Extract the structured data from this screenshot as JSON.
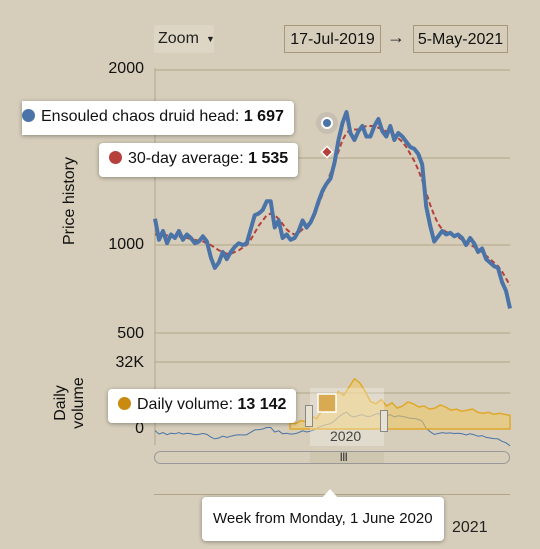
{
  "toolbar": {
    "zoom_label": "Zoom",
    "range_start": "17-Jul-2019",
    "range_arrow": "→",
    "range_end": "5-May-2021"
  },
  "price_axis": {
    "title": "Price history",
    "ticks": [
      "2000",
      "1000",
      "500"
    ]
  },
  "volume_axis": {
    "title_line1": "Daily",
    "title_line2": "volume",
    "ticks": [
      "32K",
      "0"
    ]
  },
  "navigator": {
    "year_label": "2020",
    "handle_grip": "|||"
  },
  "tooltips": {
    "item_label": "Ensouled chaos druid head:",
    "item_value": "1 697",
    "avg_label": "30-day average:",
    "avg_value": "1 535",
    "volume_label": "Daily volume:",
    "volume_value": "13 142",
    "week_label": "Week from Monday, 1 June 2020"
  },
  "x_axis": {
    "partial_label": "2021"
  },
  "colors": {
    "price_line": "#4a73a8",
    "average_line": "#b5403c",
    "volume_marker": "#c98a10",
    "volume_area": "#f2c860",
    "background": "#d6ceba",
    "grid": "#b3a688"
  },
  "chart_data": [
    {
      "type": "line",
      "title": "",
      "ylabel": "Price history",
      "ylim": [
        500,
        2000
      ],
      "x_range": [
        "2019-07-17",
        "2021-05-05"
      ],
      "series": [
        {
          "name": "Ensouled chaos druid head",
          "values": [
            1150,
            1030,
            1080,
            1010,
            1060,
            1040,
            1080,
            1030,
            1060,
            1040,
            1010,
            1020,
            1050,
            1020,
            930,
            870,
            900,
            960,
            920,
            960,
            990,
            1010,
            1000,
            1010,
            1090,
            1170,
            1180,
            1200,
            1250,
            1250,
            1100,
            1140,
            1040,
            1060,
            1030,
            1040,
            1080,
            1140,
            1100,
            1130,
            1180,
            1250,
            1310,
            1350,
            1380,
            1470,
            1600,
            1697,
            1760,
            1640,
            1600,
            1650,
            1680,
            1620,
            1620,
            1680,
            1720,
            1650,
            1620,
            1680,
            1600,
            1640,
            1620,
            1590,
            1560,
            1550,
            1520,
            1460,
            1220,
            1110,
            1020,
            1050,
            1080,
            1060,
            1070,
            1050,
            1060,
            1040,
            1000,
            1040,
            1010,
            960,
            980,
            920,
            900,
            880,
            870,
            790,
            740,
            640
          ]
        },
        {
          "name": "30-day average",
          "values": [
            1060,
            1060,
            1060,
            1055,
            1050,
            1050,
            1048,
            1045,
            1040,
            1035,
            1030,
            1025,
            1020,
            1010,
            1000,
            985,
            970,
            960,
            950,
            950,
            960,
            970,
            985,
            1000,
            1030,
            1070,
            1110,
            1140,
            1170,
            1180,
            1170,
            1150,
            1120,
            1090,
            1070,
            1060,
            1070,
            1090,
            1110,
            1140,
            1180,
            1230,
            1290,
            1350,
            1410,
            1470,
            1535,
            1600,
            1640,
            1660,
            1660,
            1660,
            1670,
            1680,
            1680,
            1680,
            1670,
            1660,
            1650,
            1640,
            1630,
            1610,
            1590,
            1560,
            1520,
            1480,
            1430,
            1370,
            1300,
            1230,
            1170,
            1120,
            1090,
            1075,
            1065,
            1055,
            1045,
            1030,
            1015,
            1000,
            990,
            975,
            960,
            940,
            920,
            900,
            880,
            850,
            810,
            770
          ]
        }
      ]
    },
    {
      "type": "area",
      "title": "",
      "ylabel": "Daily volume",
      "ylim": [
        0,
        32000
      ],
      "series": [
        {
          "name": "Daily volume",
          "values": [
            3000,
            2500,
            4000,
            3500,
            6000,
            5000,
            9000,
            12000,
            14000,
            18000,
            16000,
            20000,
            24000,
            22000,
            18000,
            13142,
            12000,
            14000,
            11000,
            12500,
            10000,
            11000,
            13000,
            12000,
            10500,
            11000,
            9500,
            10000,
            11500,
            10500,
            9000,
            9500,
            8500,
            9000,
            9500,
            8000,
            7500,
            8000,
            7000,
            7500,
            7000,
            6500
          ]
        }
      ],
      "marker": {
        "label": "Daily volume",
        "value": 13142
      }
    }
  ]
}
